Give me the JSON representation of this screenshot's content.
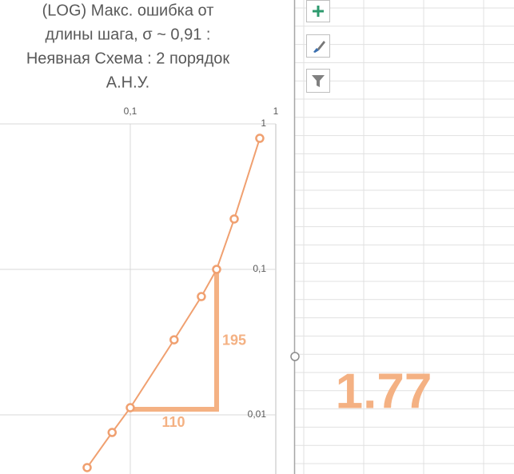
{
  "chart_data": {
    "type": "line",
    "title": [
      "(LOG) Макс. ошибка от",
      "длины шага, σ ~ 0,91 :",
      "Неявная Схема : 2 порядок",
      "А.Н.У."
    ],
    "x": [
      0.0505,
      0.075,
      0.1,
      0.2,
      0.308,
      0.392,
      0.518,
      0.776
    ],
    "series": [
      {
        "color": "#f0a070",
        "values": [
          0.00434,
          0.00757,
          0.0112,
          0.0328,
          0.065,
          0.1,
          0.222,
          0.796
        ]
      }
    ],
    "xscale": "log",
    "yscale": "log",
    "xlim": [
      0.01,
      1
    ],
    "ylim": [
      0.001,
      1
    ],
    "xticks": [
      {
        "value": 0.1,
        "label": "0,1"
      },
      {
        "value": 1,
        "label": "1"
      }
    ],
    "yticks": [
      {
        "value": 1,
        "label": "1"
      },
      {
        "value": 0.1,
        "label": "0,1"
      },
      {
        "value": 0.01,
        "label": "0,01"
      }
    ],
    "grid": true,
    "annotations": {
      "run": "110",
      "rise": "195",
      "slope": "1.77"
    }
  }
}
